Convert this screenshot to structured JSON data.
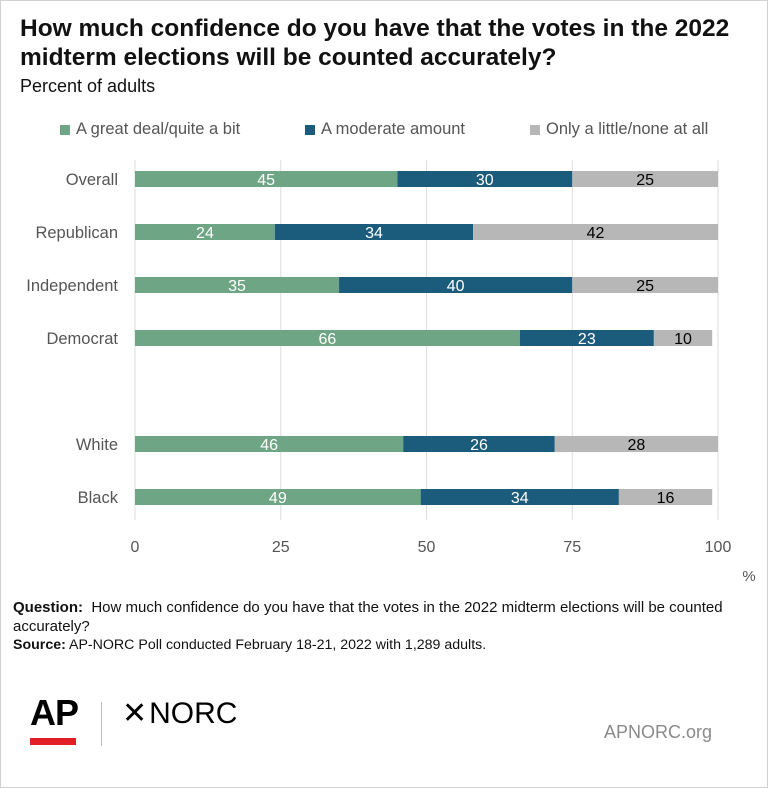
{
  "header": {
    "title": "How much confidence do you have that the votes in the 2022 midterm elections will be counted accurately?",
    "subtitle": "Percent of adults"
  },
  "chart_data": {
    "type": "bar",
    "orientation": "horizontal",
    "stacked": true,
    "categories": [
      "Overall",
      "Republican",
      "Independent",
      "Democrat",
      "White",
      "Black"
    ],
    "series": [
      {
        "name": "A great deal/quite a bit",
        "color": "#6ea585",
        "label_color": "#ffffff",
        "values": [
          45,
          24,
          35,
          66,
          46,
          49
        ]
      },
      {
        "name": "A moderate amount",
        "color": "#1b5c7c",
        "label_color": "#ffffff",
        "values": [
          30,
          34,
          40,
          23,
          26,
          34
        ]
      },
      {
        "name": "Only a little/none at all",
        "color": "#b7b7b7",
        "label_color": "#000000",
        "values": [
          25,
          42,
          25,
          10,
          28,
          16
        ]
      }
    ],
    "x_ticks": [
      "0",
      "25",
      "50",
      "75",
      "100"
    ],
    "xlim": [
      0,
      100
    ],
    "unit_label": "%",
    "legend_position": "top",
    "grid": "vertical"
  },
  "notes": {
    "question_label": "Question:",
    "question_text": "How much confidence do you have that the votes in the 2022 midterm elections will be counted accurately?",
    "source_label": "Source:",
    "source_text": "AP-NORC Poll conducted February 18-21, 2022 with 1,289 adults."
  },
  "footer": {
    "ap_logo": "AP",
    "norc_logo": "NORC",
    "site": "APNORC.org"
  }
}
